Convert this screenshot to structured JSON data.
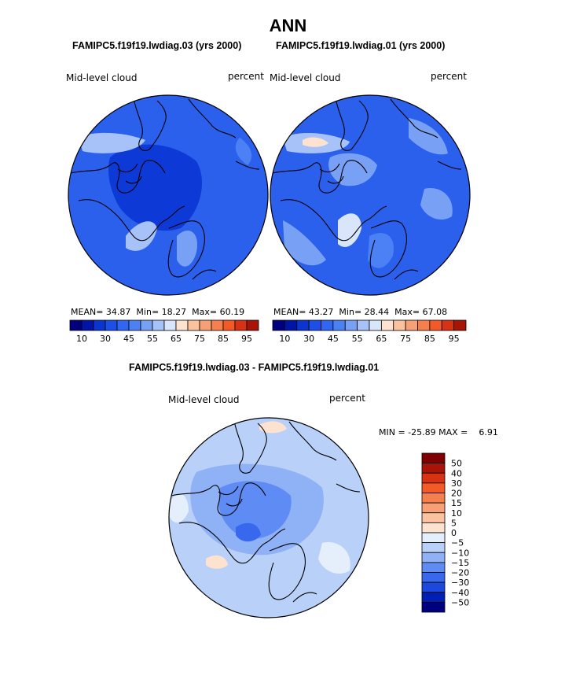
{
  "title": "ANN",
  "left_map": {
    "case_title": "FAMIPC5.f19f19.lwdiag.03 (yrs 2000)",
    "variable": "Mid-level cloud",
    "units": "percent",
    "stats": {
      "mean_label": "MEAN=",
      "mean": "34.87",
      "min_label": "Min=",
      "min": "18.27",
      "max_label": "Max=",
      "max": "60.19"
    },
    "colorbar_ticks": [
      "10",
      "30",
      "45",
      "55",
      "65",
      "75",
      "85",
      "95"
    ]
  },
  "right_map": {
    "case_title": "FAMIPC5.f19f19.lwdiag.01 (yrs 2000)",
    "variable": "Mid-level cloud",
    "units": "percent",
    "stats": {
      "mean_label": "MEAN=",
      "mean": "43.27",
      "min_label": "Min=",
      "min": "28.44",
      "max_label": "Max=",
      "max": "67.08"
    },
    "colorbar_ticks": [
      "10",
      "30",
      "45",
      "55",
      "65",
      "75",
      "85",
      "95"
    ]
  },
  "diff_map": {
    "case_title": "FAMIPC5.f19f19.lwdiag.03 - FAMIPC5.f19f19.lwdiag.01",
    "variable": "Mid-level cloud",
    "units": "percent",
    "minmax_text": "MIN = -25.89 MAX =    6.91",
    "colorbar_ticks": [
      "50",
      "40",
      "30",
      "20",
      "15",
      "10",
      "5",
      "0",
      "−5",
      "−10",
      "−15",
      "−20",
      "−30",
      "−40",
      "−50"
    ]
  },
  "chart_data": {
    "type": "heatmap",
    "projection": "polar stereographic (north pole)",
    "season": "ANN",
    "panels": [
      {
        "name": "FAMIPC5.f19f19.lwdiag.03",
        "field": "Mid-level cloud",
        "units": "percent",
        "mean": 34.87,
        "min": 18.27,
        "max": 60.19
      },
      {
        "name": "FAMIPC5.f19f19.lwdiag.01",
        "field": "Mid-level cloud",
        "units": "percent",
        "mean": 43.27,
        "min": 28.44,
        "max": 67.08
      },
      {
        "name": "difference",
        "field": "Mid-level cloud",
        "units": "percent",
        "min": -25.89,
        "max": 6.91
      }
    ],
    "abs_levels": [
      10,
      20,
      30,
      40,
      45,
      50,
      55,
      60,
      65,
      70,
      75,
      80,
      85,
      90,
      95
    ],
    "diff_levels": [
      -50,
      -40,
      -30,
      -20,
      -15,
      -10,
      -5,
      0,
      5,
      10,
      15,
      20,
      30,
      40,
      50
    ]
  },
  "colors": {
    "abs_scale": [
      "#00007f",
      "#0015a8",
      "#0a35d0",
      "#1c4ee8",
      "#2f66f2",
      "#4c80f5",
      "#78a1f6",
      "#a7c2f8",
      "#d8e5fb",
      "#fde2cf",
      "#fbc2a0",
      "#f8a075",
      "#f67f4e",
      "#f45a28",
      "#d83215",
      "#a81507",
      "#7f0000"
    ],
    "diff_scale": [
      "#7f0000",
      "#a81507",
      "#d83215",
      "#f45a28",
      "#f67f4e",
      "#f8a075",
      "#fbc2a0",
      "#fde2cf",
      "#e5eefb",
      "#b9d0f8",
      "#8fb1f6",
      "#5f8cf4",
      "#3868ee",
      "#1c48de",
      "#0020b4",
      "#00007f"
    ],
    "map_base_blue": "#2a60ec",
    "map_deep_blue": "#0d3ad6",
    "map_diff_base": "#b9d0f8"
  }
}
